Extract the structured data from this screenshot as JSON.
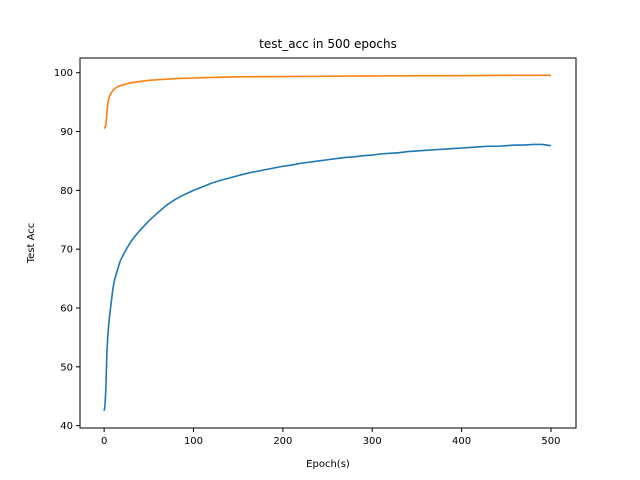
{
  "chart_data": {
    "type": "line",
    "title": "test_acc in 500 epochs",
    "xlabel": "Epoch(s)",
    "ylabel": "Test Acc",
    "xlim": [
      -27,
      528
    ],
    "ylim": [
      39.6,
      102.5
    ],
    "xticks": [
      0,
      100,
      200,
      300,
      400,
      500
    ],
    "yticks": [
      40,
      50,
      60,
      70,
      80,
      90,
      100
    ],
    "grid": false,
    "legend": "none",
    "series": [
      {
        "color": "#1f77b4",
        "points": [
          [
            0,
            42.5
          ],
          [
            1,
            43.5
          ],
          [
            2,
            46.5
          ],
          [
            3,
            52.0
          ],
          [
            4,
            55.0
          ],
          [
            5,
            57.0
          ],
          [
            6,
            58.5
          ],
          [
            8,
            61.0
          ],
          [
            10,
            63.5
          ],
          [
            12,
            65.0
          ],
          [
            15,
            66.5
          ],
          [
            18,
            68.0
          ],
          [
            22,
            69.2
          ],
          [
            26,
            70.3
          ],
          [
            30,
            71.3
          ],
          [
            35,
            72.3
          ],
          [
            40,
            73.2
          ],
          [
            45,
            74.0
          ],
          [
            50,
            74.8
          ],
          [
            55,
            75.5
          ],
          [
            60,
            76.2
          ],
          [
            70,
            77.5
          ],
          [
            80,
            78.5
          ],
          [
            90,
            79.3
          ],
          [
            100,
            80.0
          ],
          [
            110,
            80.6
          ],
          [
            120,
            81.2
          ],
          [
            130,
            81.7
          ],
          [
            140,
            82.1
          ],
          [
            150,
            82.5
          ],
          [
            160,
            82.9
          ],
          [
            170,
            83.2
          ],
          [
            180,
            83.5
          ],
          [
            190,
            83.8
          ],
          [
            200,
            84.1
          ],
          [
            210,
            84.3
          ],
          [
            220,
            84.6
          ],
          [
            230,
            84.8
          ],
          [
            240,
            85.0
          ],
          [
            250,
            85.2
          ],
          [
            260,
            85.4
          ],
          [
            270,
            85.6
          ],
          [
            280,
            85.7
          ],
          [
            290,
            85.9
          ],
          [
            300,
            86.0
          ],
          [
            310,
            86.2
          ],
          [
            320,
            86.3
          ],
          [
            330,
            86.4
          ],
          [
            340,
            86.6
          ],
          [
            350,
            86.7
          ],
          [
            360,
            86.8
          ],
          [
            370,
            86.9
          ],
          [
            380,
            87.0
          ],
          [
            390,
            87.1
          ],
          [
            400,
            87.2
          ],
          [
            410,
            87.3
          ],
          [
            420,
            87.4
          ],
          [
            430,
            87.5
          ],
          [
            440,
            87.5
          ],
          [
            450,
            87.6
          ],
          [
            460,
            87.7
          ],
          [
            470,
            87.7
          ],
          [
            480,
            87.8
          ],
          [
            490,
            87.8
          ],
          [
            500,
            87.6
          ]
        ]
      },
      {
        "color": "#ff7f0e",
        "points": [
          [
            0,
            90.5
          ],
          [
            1,
            90.7
          ],
          [
            2,
            91.2
          ],
          [
            3,
            93.0
          ],
          [
            4,
            94.5
          ],
          [
            5,
            95.5
          ],
          [
            6,
            96.0
          ],
          [
            8,
            96.6
          ],
          [
            10,
            97.0
          ],
          [
            12,
            97.3
          ],
          [
            15,
            97.6
          ],
          [
            20,
            97.9
          ],
          [
            25,
            98.1
          ],
          [
            30,
            98.3
          ],
          [
            40,
            98.5
          ],
          [
            50,
            98.7
          ],
          [
            60,
            98.8
          ],
          [
            70,
            98.9
          ],
          [
            80,
            99.0
          ],
          [
            100,
            99.1
          ],
          [
            120,
            99.2
          ],
          [
            150,
            99.3
          ],
          [
            200,
            99.35
          ],
          [
            250,
            99.4
          ],
          [
            300,
            99.45
          ],
          [
            350,
            99.5
          ],
          [
            400,
            99.5
          ],
          [
            450,
            99.55
          ],
          [
            500,
            99.55
          ]
        ]
      }
    ]
  }
}
